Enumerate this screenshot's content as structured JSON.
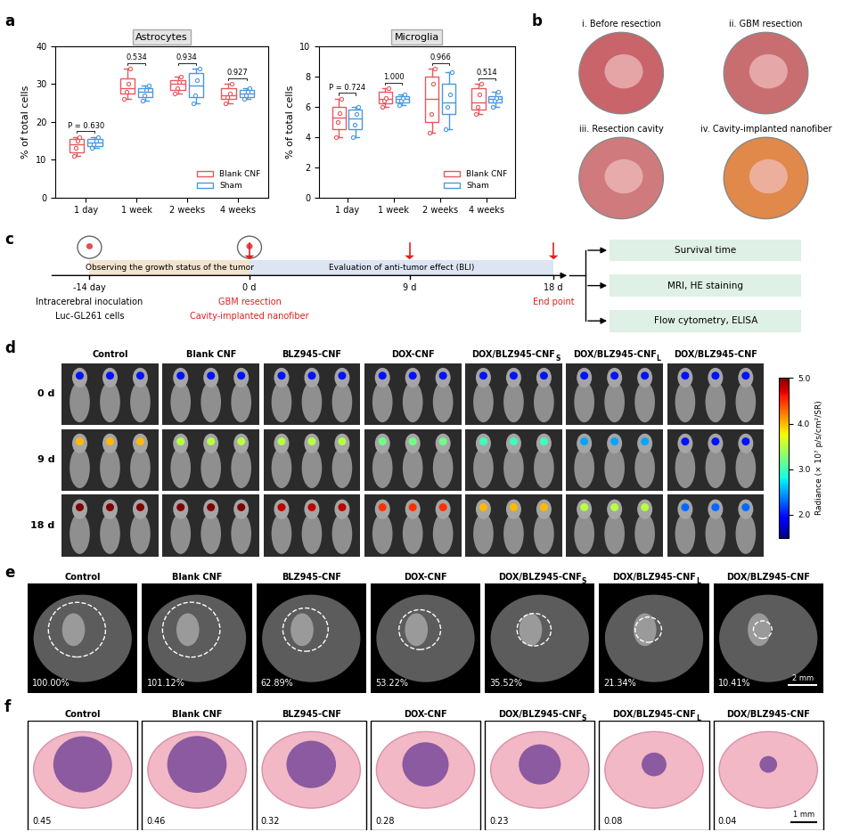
{
  "panel_labels": [
    "a",
    "b",
    "c",
    "d",
    "e",
    "f"
  ],
  "chart_data": [
    {
      "type": "box",
      "title": "Astrocytes",
      "ylabel": "% of total cells",
      "categories": [
        "1 day",
        "1 week",
        "2 weeks",
        "4 weeks"
      ],
      "ylim": [
        0,
        40
      ],
      "yticks": [
        0,
        10,
        20,
        30,
        40
      ],
      "legend": "lower right",
      "p_values": [
        "P = 0.630",
        "0.534",
        "0.934",
        "0.927"
      ],
      "series": [
        {
          "name": "Blank CNF",
          "color": "#e8585e",
          "boxes": [
            {
              "min": 11,
              "q1": 12,
              "median": 14,
              "q3": 15.5,
              "max": 16,
              "points": [
                11,
                13,
                15,
                16
              ]
            },
            {
              "min": 26,
              "q1": 27.5,
              "median": 29,
              "q3": 31.5,
              "max": 34,
              "points": [
                26,
                28,
                30,
                34
              ]
            },
            {
              "min": 27.5,
              "q1": 28.5,
              "median": 30,
              "q3": 31,
              "max": 32,
              "points": [
                27.5,
                29,
                30.5,
                32
              ]
            },
            {
              "min": 25,
              "q1": 26,
              "median": 27,
              "q3": 29,
              "max": 30,
              "points": [
                25,
                26.5,
                27.5,
                30
              ]
            }
          ]
        },
        {
          "name": "Sham",
          "color": "#4a98e0",
          "boxes": [
            {
              "min": 13,
              "q1": 13.5,
              "median": 14.5,
              "q3": 15.5,
              "max": 16,
              "points": [
                13,
                14,
                15,
                16
              ]
            },
            {
              "min": 25.5,
              "q1": 26.5,
              "median": 28,
              "q3": 29,
              "max": 29.5,
              "points": [
                25.5,
                27,
                28.5,
                29.5
              ]
            },
            {
              "min": 25,
              "q1": 26.5,
              "median": 29.5,
              "q3": 33,
              "max": 34,
              "points": [
                25,
                27,
                31,
                34
              ]
            },
            {
              "min": 26,
              "q1": 26.5,
              "median": 27.5,
              "q3": 28.5,
              "max": 29,
              "points": [
                26,
                27,
                28,
                29
              ]
            }
          ]
        }
      ]
    },
    {
      "type": "box",
      "title": "Microglia",
      "ylabel": "% of total cells",
      "categories": [
        "1 day",
        "1 week",
        "2 weeks",
        "4 weeks"
      ],
      "ylim": [
        0,
        10
      ],
      "yticks": [
        0,
        2,
        4,
        6,
        8,
        10
      ],
      "legend": "lower right",
      "p_values": [
        "P = 0.724",
        "1.000",
        "0.966",
        "0.514"
      ],
      "series": [
        {
          "name": "Blank CNF",
          "color": "#e8585e",
          "boxes": [
            {
              "min": 4.0,
              "q1": 4.5,
              "median": 5.3,
              "q3": 6.0,
              "max": 6.5,
              "points": [
                4.0,
                5.0,
                5.6,
                6.5
              ]
            },
            {
              "min": 6.0,
              "q1": 6.2,
              "median": 6.5,
              "q3": 7.0,
              "max": 7.2,
              "points": [
                6.0,
                6.4,
                6.6,
                7.2
              ]
            },
            {
              "min": 4.3,
              "q1": 5.0,
              "median": 6.5,
              "q3": 8.0,
              "max": 8.5,
              "points": [
                4.3,
                5.5,
                7.5,
                8.5
              ]
            },
            {
              "min": 5.5,
              "q1": 5.8,
              "median": 6.3,
              "q3": 7.2,
              "max": 7.5,
              "points": [
                5.5,
                6.0,
                6.8,
                7.5
              ]
            }
          ]
        },
        {
          "name": "Sham",
          "color": "#4a98e0",
          "boxes": [
            {
              "min": 4.0,
              "q1": 4.5,
              "median": 5.2,
              "q3": 5.8,
              "max": 6.0,
              "points": [
                4.0,
                4.8,
                5.5,
                6.0
              ]
            },
            {
              "min": 6.1,
              "q1": 6.3,
              "median": 6.5,
              "q3": 6.7,
              "max": 6.8,
              "points": [
                6.1,
                6.4,
                6.6,
                6.8
              ]
            },
            {
              "min": 4.5,
              "q1": 5.5,
              "median": 6.3,
              "q3": 7.5,
              "max": 8.3,
              "points": [
                4.5,
                6.0,
                6.8,
                8.3
              ]
            },
            {
              "min": 6.0,
              "q1": 6.3,
              "median": 6.5,
              "q3": 6.7,
              "max": 7.0,
              "points": [
                6.0,
                6.4,
                6.6,
                7.0
              ]
            }
          ]
        }
      ]
    }
  ],
  "b": {
    "photos": [
      {
        "caption": "i. Before resection",
        "color": "#c8646a"
      },
      {
        "caption": "ii. GBM resection",
        "color": "#c96e70"
      },
      {
        "caption": "iii. Resection cavity",
        "color": "#cf7a7c"
      },
      {
        "caption": "iv. Cavity-implanted nanofiber",
        "color": "#e0894a"
      }
    ]
  },
  "c": {
    "phases": [
      {
        "text": "Observing the growth status of the tumor",
        "color": "#f3e4cf"
      },
      {
        "text": "Evaluation of anti-tumor effect (BLI)",
        "color": "#dde5f3"
      }
    ],
    "timepoints": [
      {
        "label": "-14 day",
        "notes": [
          {
            "text": "Intracerebral inoculation",
            "color": "#000000"
          },
          {
            "text": "Luc-GL261 cells",
            "color": "#000000"
          }
        ]
      },
      {
        "label": "0 d",
        "notes": [
          {
            "text": "GBM resection",
            "color": "#e02020"
          },
          {
            "text": "Cavity-implanted nanofiber",
            "color": "#e02020"
          }
        ]
      },
      {
        "label": "9 d",
        "notes": []
      },
      {
        "label": "18 d",
        "notes": [
          {
            "text": "End point",
            "color": "#e02020"
          }
        ]
      }
    ],
    "outcomes": [
      "Survival time",
      "MRI, HE staining",
      "Flow cytometry, ELISA"
    ]
  },
  "groups": [
    {
      "name": "Control"
    },
    {
      "name": "Blank CNF"
    },
    {
      "name": "BLZ945-CNF"
    },
    {
      "name": "DOX-CNF"
    },
    {
      "name": "DOX/BLZ945-CNF",
      "subscript": "S"
    },
    {
      "name": "DOX/BLZ945-CNF",
      "subscript": "L"
    },
    {
      "name": "DOX/BLZ945-CNF"
    }
  ],
  "d": {
    "days": [
      "0 d",
      "9 d",
      "18 d"
    ],
    "radiance": [
      [
        2.0,
        2.0,
        2.0,
        2.0,
        2.0,
        2.0,
        2.0
      ],
      [
        4.0,
        3.5,
        3.5,
        3.2,
        3.0,
        2.5,
        2.0
      ],
      [
        5.0,
        5.0,
        4.8,
        4.5,
        4.0,
        3.5,
        2.3
      ]
    ],
    "colorbar": {
      "label": "Radiance (× 10⁷ p/s/cm²/SR)",
      "lim": [
        1.5,
        5.0
      ],
      "ticks": [
        {
          "value": 2.0,
          "label": "2.0"
        },
        {
          "value": 3.0,
          "label": "3.0"
        },
        {
          "value": 4.0,
          "label": "4.0"
        },
        {
          "value": 5.0,
          "label": "5.0"
        }
      ]
    }
  },
  "e": {
    "tumor_volume": [
      {
        "value": 100.0,
        "label": "100.00%"
      },
      {
        "value": 101.12,
        "label": "101.12%"
      },
      {
        "value": 62.89,
        "label": "62.89%"
      },
      {
        "value": 53.22,
        "label": "53.22%"
      },
      {
        "value": 35.52,
        "label": "35.52%"
      },
      {
        "value": 21.34,
        "label": "21.34%"
      },
      {
        "value": 10.41,
        "label": "10.41%"
      }
    ],
    "scale_bar": "2 mm"
  },
  "f": {
    "tumor_area": [
      0.45,
      0.46,
      0.32,
      0.28,
      0.23,
      0.08,
      0.04
    ],
    "scale_bar": "1 mm"
  }
}
